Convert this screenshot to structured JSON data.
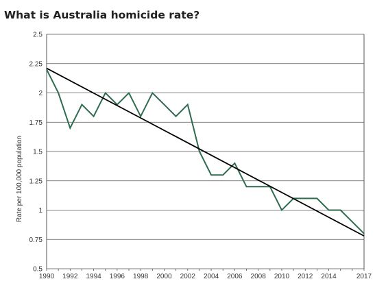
{
  "chart_data": {
    "type": "line",
    "title": "What is Australia homicide rate?",
    "xlabel": "",
    "ylabel": "Rate per 100,000 population",
    "ylim": [
      0.5,
      2.5
    ],
    "xlim": [
      1990,
      2017
    ],
    "y_ticks": [
      "0.5",
      "0.75",
      "1",
      "1.25",
      "1.5",
      "1.75",
      "2",
      "2.25",
      "2.5"
    ],
    "x_ticks": [
      "1990",
      "1992",
      "1994",
      "1996",
      "1998",
      "2000",
      "2002",
      "2004",
      "2006",
      "2008",
      "2010",
      "2012",
      "2014",
      "2017"
    ],
    "grid": true,
    "series": [
      {
        "color": "#2e6b4f",
        "x": [
          1990,
          1991,
          1992,
          1993,
          1994,
          1995,
          1996,
          1997,
          1998,
          1999,
          2000,
          2001,
          2002,
          2003,
          2004,
          2005,
          2006,
          2007,
          2008,
          2009,
          2010,
          2011,
          2012,
          2013,
          2014,
          2015,
          2016,
          2017
        ],
        "values": [
          2.2,
          2.0,
          1.7,
          1.9,
          1.8,
          2.0,
          1.9,
          2.0,
          1.8,
          2.0,
          1.9,
          1.8,
          1.9,
          1.5,
          1.3,
          1.3,
          1.4,
          1.2,
          1.2,
          1.2,
          1.0,
          1.1,
          1.1,
          1.1,
          1.0,
          1.0,
          0.9,
          0.8
        ]
      }
    ],
    "trend_line": {
      "color": "#000000",
      "x": [
        1990,
        2017
      ],
      "values": [
        2.21,
        0.78
      ]
    }
  }
}
